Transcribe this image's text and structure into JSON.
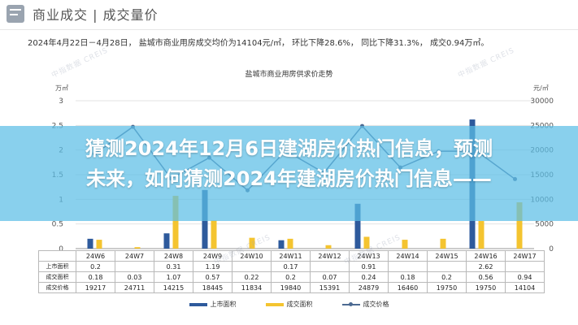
{
  "header": {
    "section_title": "商业成交 | 成交量价",
    "summary": "2024年4月22日－4月28日， 盐城市商业用房成交均价为14104元/㎡，    环比下降28.6%，    同比下降31.3%，    成交0.94万㎡。"
  },
  "watermark": "中指数据 CREIS",
  "banner": {
    "line1": "猜测2024年12月6日建湖房价热门信息，预测",
    "line2": "未来，如何猜测2024年建湖房价热门信息——"
  },
  "colors": {
    "supply": "#2e5a9c",
    "deal": "#f4c430",
    "price": "#4c6a92",
    "banner": "#5cbee6"
  },
  "chart_data": {
    "type": "bar",
    "title": "盐城市商业用房供求价走势",
    "left_unit": "万㎡",
    "right_unit": "元/㎡",
    "categories": [
      "24W6",
      "24W7",
      "24W8",
      "24W9",
      "24W10",
      "24W11",
      "24W12",
      "24W13",
      "24W14",
      "24W15",
      "24W16",
      "24W17"
    ],
    "ylim": [
      0,
      3
    ],
    "y_ticks": [
      "0",
      "0.5",
      "1",
      "1.5",
      "2",
      "2.5",
      "3"
    ],
    "y2lim": [
      0,
      30000
    ],
    "y2_ticks": [
      "0",
      "5000",
      "10000",
      "15000",
      "20000",
      "25000",
      "30000"
    ],
    "series": [
      {
        "name": "上市面积",
        "kind": "bar",
        "values": [
          0.2,
          0,
          0.31,
          1.19,
          0,
          0.17,
          0,
          0.91,
          0,
          0,
          2.62,
          0
        ],
        "labels": [
          "0.2",
          "",
          "0.31",
          "1.19",
          "",
          "0.17",
          "",
          "0.91",
          "",
          "",
          "2.62",
          ""
        ]
      },
      {
        "name": "成交面积",
        "kind": "bar",
        "values": [
          0.18,
          0.03,
          1.07,
          0.57,
          0.22,
          0.2,
          0.07,
          0.24,
          0.18,
          0.2,
          0.56,
          0.94
        ],
        "labels": [
          "0.18",
          "0.03",
          "1.07",
          "0.57",
          "0.22",
          "0.2",
          "0.07",
          "0.24",
          "0.18",
          "0.2",
          "0.56",
          "0.94"
        ]
      },
      {
        "name": "成交价格",
        "kind": "line",
        "values": [
          19217,
          24711,
          14215,
          18445,
          11834,
          19840,
          15391,
          24879,
          16460,
          19750,
          19750,
          14104
        ],
        "labels": [
          "19217",
          "24711",
          "14215",
          "18445",
          "11834",
          "19840",
          "15391",
          "24879",
          "16460",
          "19750",
          "19750",
          "14104"
        ]
      }
    ],
    "table_row_labels": [
      "上市面积",
      "成交面积",
      "成交价格"
    ],
    "grid": true,
    "legend_position": "bottom"
  }
}
